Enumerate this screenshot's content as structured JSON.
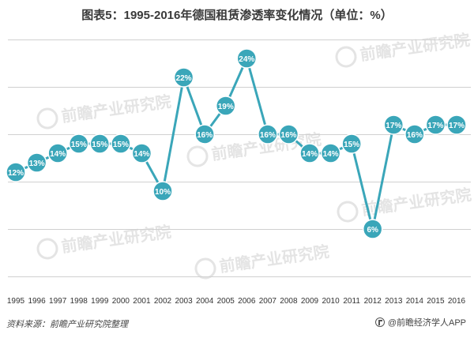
{
  "title": "图表5：1995-2016年德国租赁渗透率变化情况（单位：%）",
  "source": "资料来源：前瞻产业研究院整理",
  "brand": "@前瞻经济学人APP",
  "watermark": "前瞻产业研究院",
  "colors": {
    "line": "#3aa6b9",
    "label_text": "#ffffff",
    "grid": "#d0d0d0",
    "watermark": "#cfcfcf"
  },
  "chart_data": {
    "type": "line",
    "title": "图表5：1995-2016年德国租赁渗透率变化情况（单位：%）",
    "xlabel": "",
    "ylabel": "",
    "unit": "%",
    "grid": true,
    "ylim": [
      0,
      26
    ],
    "categories": [
      "1995",
      "1996",
      "1997",
      "1998",
      "1999",
      "2000",
      "2001",
      "2002",
      "2003",
      "2004",
      "2005",
      "2006",
      "2007",
      "2008",
      "2009",
      "2010",
      "2011",
      "2012",
      "2013",
      "2014",
      "2015",
      "2016"
    ],
    "series": [
      {
        "values": [
          12,
          13,
          14,
          15,
          15,
          15,
          14,
          10,
          22,
          16,
          19,
          24,
          16,
          16,
          14,
          14,
          15,
          6,
          17,
          16,
          17,
          17
        ],
        "labels": [
          "12%",
          "13%",
          "14%",
          "15%",
          "15%",
          "15%",
          "14%",
          "10%",
          "22%",
          "16%",
          "19%",
          "24%",
          "16%",
          "16%",
          "14%",
          "14%",
          "15%",
          "6%",
          "17%",
          "16%",
          "17%",
          "17%"
        ]
      }
    ]
  }
}
